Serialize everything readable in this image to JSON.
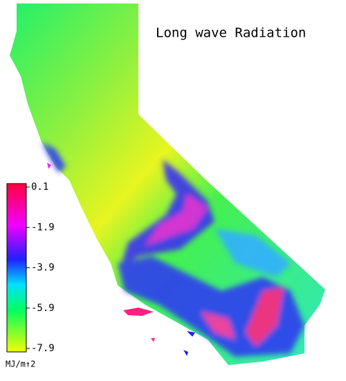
{
  "title": "Long wave Radiation",
  "legend": {
    "range": [
      -7.9,
      0.1
    ],
    "ticks": [
      0.1,
      -1.9,
      -3.9,
      -5.9,
      -7.9
    ],
    "unit": "MJ/m↑2"
  }
}
